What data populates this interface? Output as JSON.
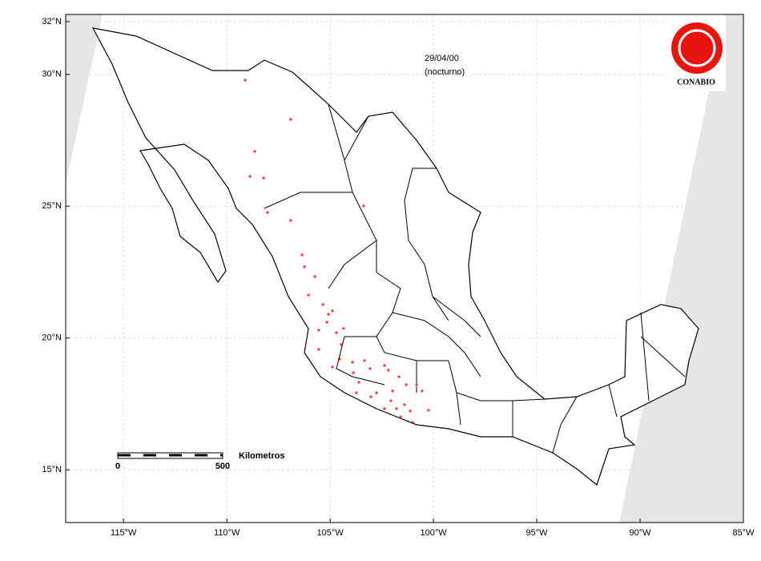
{
  "chart_data": {
    "type": "scatter",
    "title": "29/04/00",
    "subtitle": "(nocturno)",
    "logo": "CONABIO",
    "scale_bar": {
      "label": "Kilometros",
      "ticks": [
        0,
        500
      ]
    },
    "color": "#ff0000",
    "x": [
      -109.12,
      -106.91,
      -108.65,
      -108.88,
      -108.22,
      -108.03,
      -103.38,
      -106.91,
      -106.36,
      -106.25,
      -105.74,
      -106.05,
      -105.35,
      -105.08,
      -104.89,
      -105.55,
      -105.16,
      -104.7,
      -104.35,
      -104.46,
      -105.55,
      -104.54,
      -103.92,
      -103.34,
      -103.88,
      -104.89,
      -103.61,
      -103.07,
      -102.37,
      -102.76,
      -102.18,
      -101.67,
      -101.32,
      -101.98,
      -103.73,
      -103.03,
      -102.06,
      -101.79,
      -101.4,
      -100.82,
      -100.55,
      -100.24,
      -101.13,
      -101.01,
      -101.59,
      -102.37
    ],
    "y": [
      29.78,
      28.29,
      27.08,
      26.13,
      26.07,
      24.76,
      25.01,
      24.46,
      23.15,
      22.7,
      22.33,
      21.63,
      21.27,
      20.9,
      21.03,
      20.3,
      20.6,
      20.2,
      20.36,
      19.75,
      19.57,
      19.2,
      19.08,
      19.14,
      18.68,
      18.9,
      18.32,
      18.84,
      18.96,
      17.92,
      18.78,
      18.53,
      18.23,
      17.99,
      17.92,
      17.77,
      17.62,
      17.32,
      17.47,
      18.23,
      17.99,
      17.26,
      17.23,
      16.8,
      17.01,
      17.32
    ],
    "xlim": [
      -117.8,
      -85
    ],
    "ylim": [
      13,
      32
    ],
    "xticks": [
      {
        "value": -115,
        "label": "115°W"
      },
      {
        "value": -110,
        "label": "110°W"
      },
      {
        "value": -105,
        "label": "105°W"
      },
      {
        "value": -100,
        "label": "100°W"
      },
      {
        "value": -95,
        "label": "95°W"
      },
      {
        "value": -90,
        "label": "90°W"
      },
      {
        "value": -85,
        "label": "85°W"
      }
    ],
    "yticks": [
      {
        "value": 32,
        "label": "32°N"
      },
      {
        "value": 30,
        "label": "30°N"
      },
      {
        "value": 25,
        "label": "25°N"
      },
      {
        "value": 20,
        "label": "20°N"
      },
      {
        "value": 15,
        "label": "15°N"
      }
    ],
    "grid": true
  }
}
